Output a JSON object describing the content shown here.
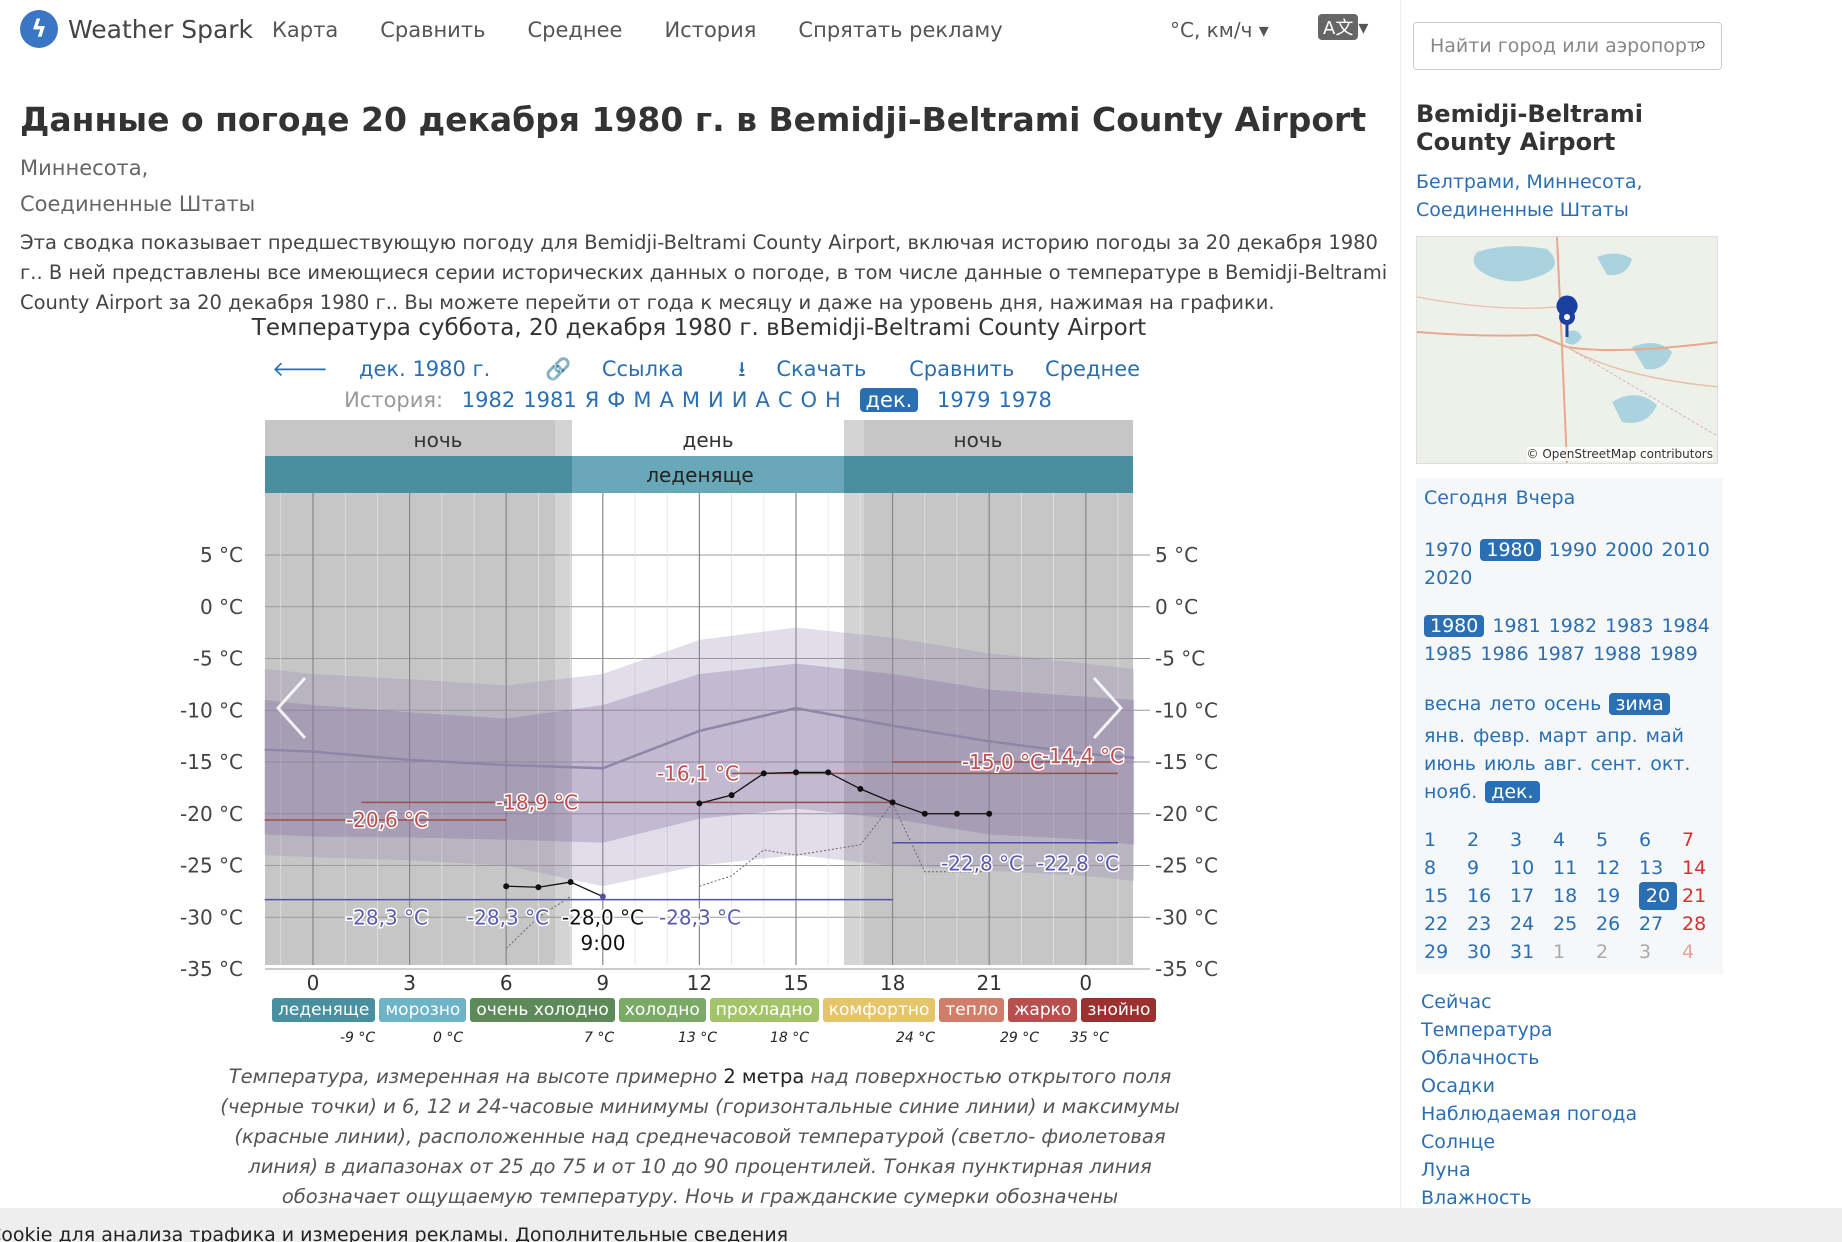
{
  "header": {
    "logo_text": "Weather Spark",
    "nav": [
      "Карта",
      "Сравнить",
      "Среднее",
      "История",
      "Спрятать рекламу"
    ],
    "units": "°C, км/ч",
    "search_placeholder": "Найти город или аэропорт"
  },
  "page": {
    "title": "Данные о погоде 20 декабря 1980 г. в Bemidji-Beltrami County Airport",
    "subtitle_line1": "Миннесота,",
    "subtitle_line2": "Соединенные Штаты",
    "intro": "Эта сводка показывает предшествующую погоду для Bemidji-Beltrami County Airport, включая историю погоды за 20 декабря 1980 г.. В ней представлены все имеющиеся серии исторических данных о погоде, в том числе данные о температуре в Bemidji-Beltrami County Airport за 20 декабря 1980 г.. Вы можете перейти от года к месяцу и даже на уровень дня, нажимая на графики."
  },
  "chart_header": {
    "title": "Температура суббота, 20 декабря 1980 г. вBemidji-Beltrami County Airport",
    "back": "дек. 1980 г.",
    "link": "Ссылка",
    "download": "Скачать",
    "compare": "Сравнить",
    "average": "Среднее",
    "history_label": "История:",
    "history_items": [
      "1982",
      "1981",
      "Я",
      "Ф",
      "М",
      "А",
      "М",
      "И",
      "И",
      "А",
      "С",
      "О",
      "Н"
    ],
    "history_selected": "дек.",
    "history_after": [
      "1979",
      "1978"
    ]
  },
  "chart_data": {
    "type": "line",
    "x": [
      0,
      3,
      6,
      9,
      12,
      15,
      18,
      21,
      24
    ],
    "xlabel": "",
    "ylabel": "",
    "y_ticks": [
      "5 °C",
      "0 °C",
      "-5 °C",
      "-10 °C",
      "-15 °C",
      "-20 °C",
      "-25 °C",
      "-30 °C",
      "-35 °C"
    ],
    "x_ticks": [
      "0",
      "3",
      "6",
      "9",
      "12",
      "15",
      "18",
      "21",
      "0"
    ],
    "ylim": [
      -38,
      7
    ],
    "bands": {
      "night1": "ночь",
      "day": "день",
      "night2": "ночь",
      "category": "леденяще"
    },
    "observed": [
      {
        "h": 6,
        "t": -27.0
      },
      {
        "h": 7,
        "t": -27.1
      },
      {
        "h": 8,
        "t": -26.6
      },
      {
        "h": 9,
        "t": -28.0
      },
      {
        "h": 12,
        "t": -19.0
      },
      {
        "h": 13,
        "t": -18.2
      },
      {
        "h": 14,
        "t": -16.1
      },
      {
        "h": 15,
        "t": -16.0
      },
      {
        "h": 16,
        "t": -16.0
      },
      {
        "h": 17,
        "t": -17.6
      },
      {
        "h": 18,
        "t": -18.9
      },
      {
        "h": 19,
        "t": -20.0
      },
      {
        "h": 20,
        "t": -20.0
      },
      {
        "h": 21,
        "t": -20.0
      }
    ],
    "feels_like": [
      {
        "h": 6,
        "t": -33.0
      },
      {
        "h": 7,
        "t": -30.0
      },
      {
        "h": 8,
        "t": -28.0
      },
      {
        "h": 12,
        "t": -27.0
      },
      {
        "h": 13,
        "t": -26.0
      },
      {
        "h": 14,
        "t": -23.5
      },
      {
        "h": 15,
        "t": -24.0
      },
      {
        "h": 17,
        "t": -23.0
      },
      {
        "h": 18,
        "t": -19.0
      },
      {
        "h": 19,
        "t": -25.6
      },
      {
        "h": 21,
        "t": -25.6
      }
    ],
    "max_lines": [
      {
        "from": -1.5,
        "to": 6,
        "t": -20.6
      },
      {
        "from": 1.5,
        "to": 18,
        "t": -18.9
      },
      {
        "from": 13,
        "to": 25,
        "t": -16.1
      },
      {
        "from": 18,
        "to": 25,
        "t": -15.0
      }
    ],
    "min_lines": [
      {
        "from": -1.5,
        "to": 18,
        "t": -28.3
      },
      {
        "from": 18,
        "to": 25,
        "t": -22.8
      }
    ],
    "labels": {
      "max": [
        "-20,6 °C",
        "-18,9 °C",
        "-16,1 °C",
        "-15,0 °C",
        "-14,4 °C"
      ],
      "min": [
        "-28,3 °C",
        "-28,3 °C",
        "-28,3 °C",
        "-22,8 °C",
        "-22,8 °C"
      ],
      "tooltip_value": "-28,0 °C",
      "tooltip_time": "9:00"
    }
  },
  "legend": {
    "items": [
      {
        "label": "леденяще",
        "color": "#4a8fa0"
      },
      {
        "label": "морозно",
        "color": "#6fb3c7"
      },
      {
        "label": "очень холодно",
        "color": "#5e8a5a"
      },
      {
        "label": "холодно",
        "color": "#7aaa65"
      },
      {
        "label": "прохладно",
        "color": "#a3c46a"
      },
      {
        "label": "комфортно",
        "color": "#e5c46a"
      },
      {
        "label": "тепло",
        "color": "#d07e6a"
      },
      {
        "label": "жарко",
        "color": "#b84f4f"
      },
      {
        "label": "знойно",
        "color": "#9a3030"
      }
    ],
    "ticks": [
      "-9 °C",
      "0 °C",
      "7 °C",
      "13 °C",
      "18 °C",
      "24 °C",
      "29 °C",
      "35 °C"
    ]
  },
  "caption": {
    "part1": "Температура, измеренная на высоте примерно ",
    "highlight": "2 метра",
    "part2": " над поверхностью открытого поля (черные точки) и 6, 12 и 24-часовые минимумы (горизонтальные синие линии) и максимумы (красные линии), расположенные над среднечасовой температурой (светло- фиолетовая линия) в диапазонах от 25 до 75 и от 10 до 90 процентилей. Тонкая пунктирная линия обозначает ощущаемую температуру. Ночь и гражданские сумерки обозначены затемненными областями."
  },
  "sidebar": {
    "title": "Bemidji-Beltrami County Airport",
    "loc_line1": "Белтрами, Миннесота,",
    "loc_line2": "Соединенные Штаты",
    "map_credit": "© OpenStreetMap contributors",
    "today": "Сегодня",
    "yesterday": "Вчера",
    "decades_row1": [
      "1970",
      "1980",
      "1990",
      "2000",
      "2010"
    ],
    "decades_row2": [
      "2020"
    ],
    "decade_selected": "1980",
    "years_row1": [
      "1980",
      "1981",
      "1982",
      "1983",
      "1984"
    ],
    "years_row2": [
      "1985",
      "1986",
      "1987",
      "1988",
      "1989"
    ],
    "year_selected": "1980",
    "seasons": [
      "весна",
      "лето",
      "осень",
      "зима"
    ],
    "season_selected": "зима",
    "months_row1": [
      "янв.",
      "февр.",
      "март",
      "апр.",
      "май"
    ],
    "months_row2": [
      "июнь",
      "июль",
      "авг.",
      "сент.",
      "окт."
    ],
    "months_row3": [
      "нояб.",
      "дек."
    ],
    "month_selected": "дек.",
    "days": [
      [
        "1",
        "2",
        "3",
        "4",
        "5",
        "6",
        "7"
      ],
      [
        "8",
        "9",
        "10",
        "11",
        "12",
        "13",
        "14"
      ],
      [
        "15",
        "16",
        "17",
        "18",
        "19",
        "20",
        "21"
      ],
      [
        "22",
        "23",
        "24",
        "25",
        "26",
        "27",
        "28"
      ],
      [
        "29",
        "30",
        "31",
        "1",
        "2",
        "3",
        "4"
      ]
    ],
    "day_selected": "20",
    "links": [
      "Сейчас",
      "Температура",
      "Облачность",
      "Осадки",
      "Наблюдаемая погода",
      "Солнце",
      "Луна",
      "Влажность"
    ]
  },
  "cookie_bar": "Cookie для анализа трафика и измерения рекламы.  Дополнительные сведения"
}
